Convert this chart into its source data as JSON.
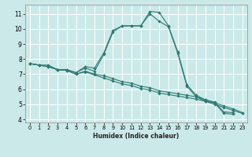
{
  "title": "",
  "xlabel": "Humidex (Indice chaleur)",
  "xlim": [
    -0.5,
    23.5
  ],
  "ylim": [
    3.8,
    11.6
  ],
  "yticks": [
    4,
    5,
    6,
    7,
    8,
    9,
    10,
    11
  ],
  "xticks": [
    0,
    1,
    2,
    3,
    4,
    5,
    6,
    7,
    8,
    9,
    10,
    11,
    12,
    13,
    14,
    15,
    16,
    17,
    18,
    19,
    20,
    21,
    22,
    23
  ],
  "background_color": "#cce9e9",
  "grid_color": "#ffffff",
  "line_color": "#2d7a72",
  "lines": [
    {
      "x": [
        0,
        1,
        2,
        3,
        4,
        5,
        6,
        7,
        8,
        9,
        10,
        11,
        12,
        13,
        14,
        15,
        16,
        17,
        18,
        19,
        20,
        21,
        22
      ],
      "y": [
        7.7,
        7.6,
        7.6,
        7.3,
        7.3,
        7.1,
        7.5,
        7.4,
        8.4,
        9.9,
        10.2,
        10.2,
        10.2,
        11.15,
        11.1,
        10.2,
        8.5,
        6.3,
        5.6,
        5.3,
        5.15,
        4.5,
        4.45
      ]
    },
    {
      "x": [
        0,
        1,
        2,
        3,
        4,
        5,
        6,
        7,
        8,
        9,
        10,
        11,
        12,
        13,
        14,
        15,
        16,
        17,
        18,
        19,
        20,
        21,
        22
      ],
      "y": [
        7.7,
        7.6,
        7.5,
        7.3,
        7.3,
        7.1,
        7.4,
        7.2,
        8.3,
        9.8,
        10.2,
        10.2,
        10.2,
        11.0,
        10.5,
        10.15,
        8.4,
        6.2,
        5.5,
        5.2,
        5.1,
        4.4,
        4.35
      ]
    },
    {
      "x": [
        0,
        1,
        2,
        3,
        4,
        5,
        6,
        7,
        8,
        9,
        10,
        11,
        12,
        13,
        14,
        15,
        16,
        17,
        18,
        19,
        20,
        21,
        22,
        23
      ],
      "y": [
        7.7,
        7.6,
        7.5,
        7.3,
        7.25,
        7.0,
        7.2,
        7.0,
        6.9,
        6.7,
        6.5,
        6.4,
        6.2,
        6.1,
        5.9,
        5.8,
        5.7,
        5.6,
        5.5,
        5.3,
        5.1,
        4.9,
        4.7,
        4.45
      ]
    },
    {
      "x": [
        0,
        1,
        2,
        3,
        4,
        5,
        6,
        7,
        8,
        9,
        10,
        11,
        12,
        13,
        14,
        15,
        16,
        17,
        18,
        19,
        20,
        21,
        22,
        23
      ],
      "y": [
        7.7,
        7.6,
        7.5,
        7.3,
        7.25,
        7.0,
        7.15,
        6.95,
        6.75,
        6.55,
        6.35,
        6.25,
        6.05,
        5.95,
        5.75,
        5.65,
        5.55,
        5.45,
        5.35,
        5.2,
        5.0,
        4.8,
        4.6,
        4.4
      ]
    }
  ]
}
